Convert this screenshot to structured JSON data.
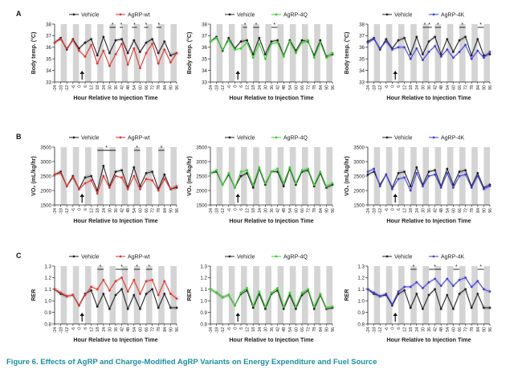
{
  "caption": "Figure 6. Effects of AgRP and Charge-Modified AgRP Variants on Energy Expenditure and Fuel Source",
  "x_axis": {
    "title": "Hour Relative to Injection Time",
    "ticks": [
      -24,
      -18,
      -12,
      -6,
      0,
      6,
      12,
      18,
      24,
      30,
      36,
      42,
      48,
      54,
      60,
      66,
      72,
      78,
      84,
      90,
      96
    ],
    "tick_labels": [
      "-24",
      "-18",
      "-12",
      "-6",
      "0",
      "6",
      "12",
      "18",
      "24",
      "30",
      "36",
      "42",
      "48",
      "54",
      "60",
      "66",
      "72",
      "78",
      "84",
      "90",
      "96"
    ],
    "range": [
      -24,
      96
    ],
    "dark_phases": [
      [
        -18,
        -12
      ],
      [
        -6,
        0
      ],
      [
        6,
        12
      ],
      [
        18,
        24
      ],
      [
        30,
        36
      ],
      [
        42,
        48
      ],
      [
        54,
        60
      ],
      [
        66,
        72
      ],
      [
        78,
        84
      ],
      [
        90,
        96
      ]
    ],
    "injection_hour": 0
  },
  "colors": {
    "vehicle": "#222222",
    "wt": "#e8322e",
    "q4": "#39d12e",
    "k4": "#3f3fdc",
    "shade": "#d4d4d4"
  },
  "rows": [
    {
      "letter": "A",
      "ylabel": "Body temp. (°C)",
      "yticks": [
        33,
        34,
        35,
        36,
        37,
        38
      ],
      "ylim": [
        33,
        38
      ]
    },
    {
      "letter": "B",
      "ylabel": "VO₂ (mL/kg/hr)",
      "yticks": [
        1500,
        2000,
        2500,
        3000,
        3500
      ],
      "ylim": [
        1500,
        3500
      ]
    },
    {
      "letter": "C",
      "ylabel": "RER",
      "yticks": [
        0.8,
        0.9,
        1.0,
        1.1,
        1.2,
        1.3
      ],
      "ylim": [
        0.8,
        1.3
      ]
    }
  ],
  "columns": [
    {
      "variant": "wt",
      "legend_vehicle": "Vehicle",
      "legend_variant": "AgRP-wt"
    },
    {
      "variant": "q4",
      "legend_vehicle": "Vehicle",
      "legend_variant": "AgRP-4Q"
    },
    {
      "variant": "k4",
      "legend_vehicle": "Vehicle",
      "legend_variant": "AgRP-4K"
    }
  ],
  "chart_data": [
    {
      "type": "line",
      "panel": "A-wt",
      "ylabel": "Body temp. (°C)",
      "ylim": [
        33,
        38
      ],
      "xlabel": "Hour Relative to Injection Time",
      "x": [
        -24,
        -18,
        -12,
        -6,
        0,
        6,
        12,
        18,
        24,
        30,
        36,
        42,
        48,
        54,
        60,
        66,
        72,
        78,
        84,
        90,
        96
      ],
      "series": [
        {
          "name": "Vehicle",
          "values": [
            36.4,
            36.8,
            35.8,
            36.7,
            35.9,
            36.4,
            36.7,
            35.3,
            36.9,
            35.5,
            36.6,
            36.7,
            35.5,
            36.6,
            35.6,
            36.4,
            36.7,
            35.5,
            36.5,
            35.3,
            35.5
          ]
        },
        {
          "name": "AgRP-wt",
          "values": [
            36.4,
            36.7,
            35.9,
            36.6,
            35.7,
            35.2,
            36.2,
            34.6,
            35.7,
            34.4,
            35.4,
            36.3,
            34.5,
            35.9,
            34.2,
            35.5,
            36.3,
            34.6,
            35.8,
            34.7,
            35.5
          ]
        }
      ],
      "significance": [
        {
          "from": 30,
          "to": 36,
          "label": "*"
        },
        {
          "from": 40,
          "to": 43,
          "label": "*"
        },
        {
          "from": 52,
          "to": 57,
          "label": "*"
        },
        {
          "from": 64,
          "to": 68,
          "label": "*"
        },
        {
          "from": 76,
          "to": 81,
          "label": "*"
        }
      ]
    },
    {
      "type": "line",
      "panel": "A-4Q",
      "ylabel": "Body temp. (°C)",
      "ylim": [
        33,
        38
      ],
      "xlabel": "Hour Relative to Injection Time",
      "x": [
        -24,
        -18,
        -12,
        -6,
        0,
        6,
        12,
        18,
        24,
        30,
        36,
        42,
        48,
        54,
        60,
        66,
        72,
        78,
        84,
        90,
        96
      ],
      "series": [
        {
          "name": "Vehicle",
          "values": [
            36.5,
            36.9,
            35.7,
            36.8,
            35.9,
            36.5,
            36.6,
            35.4,
            36.8,
            35.4,
            36.5,
            36.6,
            35.3,
            36.6,
            35.7,
            36.6,
            36.5,
            35.3,
            36.6,
            35.2,
            35.4
          ]
        },
        {
          "name": "AgRP-4Q",
          "values": [
            36.5,
            36.8,
            35.8,
            36.6,
            35.8,
            35.9,
            36.4,
            35.1,
            36.3,
            35.0,
            36.3,
            36.4,
            35.2,
            36.5,
            35.5,
            36.4,
            36.6,
            35.1,
            36.4,
            35.1,
            35.5
          ]
        }
      ],
      "significance": [
        {
          "from": 8,
          "to": 12,
          "label": "*"
        },
        {
          "from": 18,
          "to": 24,
          "label": "*"
        },
        {
          "from": 36,
          "to": 42,
          "label": "*"
        }
      ]
    },
    {
      "type": "line",
      "panel": "A-4K",
      "ylabel": "Body temp. (°C)",
      "ylim": [
        33,
        38
      ],
      "xlabel": "Hour Relative to Injection Time",
      "x": [
        -24,
        -18,
        -12,
        -6,
        0,
        6,
        12,
        18,
        24,
        30,
        36,
        42,
        48,
        54,
        60,
        66,
        72,
        78,
        84,
        90,
        96
      ],
      "series": [
        {
          "name": "Vehicle",
          "values": [
            36.5,
            36.8,
            35.8,
            36.7,
            35.9,
            36.6,
            36.8,
            35.4,
            36.9,
            35.4,
            36.5,
            36.9,
            35.4,
            36.7,
            35.6,
            36.6,
            36.9,
            35.3,
            36.7,
            35.3,
            35.4
          ]
        },
        {
          "name": "AgRP-4K",
          "values": [
            36.4,
            36.7,
            35.9,
            36.5,
            35.8,
            36.0,
            36.0,
            35.0,
            35.9,
            34.9,
            35.6,
            36.1,
            35.2,
            35.8,
            35.1,
            35.6,
            36.2,
            35.0,
            35.7,
            35.1,
            35.6
          ]
        }
      ],
      "significance": [
        {
          "from": 30,
          "to": 34,
          "label": "*"
        },
        {
          "from": 34,
          "to": 39,
          "label": "*"
        },
        {
          "from": 42,
          "to": 48,
          "label": "*"
        },
        {
          "from": 66,
          "to": 72,
          "label": "*"
        },
        {
          "from": 84,
          "to": 90,
          "label": "*"
        }
      ]
    },
    {
      "type": "line",
      "panel": "B-wt",
      "ylabel": "VO₂ (mL/kg/hr)",
      "ylim": [
        1500,
        3500
      ],
      "xlabel": "Hour Relative to Injection Time",
      "x": [
        -24,
        -18,
        -12,
        -6,
        0,
        6,
        12,
        18,
        24,
        30,
        36,
        42,
        48,
        54,
        60,
        66,
        72,
        78,
        84,
        90,
        96
      ],
      "series": [
        {
          "name": "Vehicle",
          "values": [
            2550,
            2650,
            2150,
            2500,
            2050,
            2450,
            2500,
            2000,
            2850,
            2150,
            2650,
            2700,
            2100,
            2800,
            2150,
            2600,
            2650,
            2050,
            2550,
            2050,
            2100
          ]
        },
        {
          "name": "AgRP-wt",
          "values": [
            2550,
            2600,
            2150,
            2450,
            2050,
            2250,
            2350,
            1900,
            2500,
            2100,
            2500,
            2450,
            2050,
            2500,
            2050,
            2400,
            2350,
            2000,
            2400,
            2050,
            2150
          ]
        }
      ],
      "significance": [
        {
          "from": 18,
          "to": 36,
          "label": "*"
        },
        {
          "from": 54,
          "to": 60,
          "label": "*"
        },
        {
          "from": 78,
          "to": 84,
          "label": "*"
        }
      ]
    },
    {
      "type": "line",
      "panel": "B-4Q",
      "ylabel": "VO₂ (mL/kg/hr)",
      "ylim": [
        1500,
        3500
      ],
      "xlabel": "Hour Relative to Injection Time",
      "x": [
        -24,
        -18,
        -12,
        -6,
        0,
        6,
        12,
        18,
        24,
        30,
        36,
        42,
        48,
        54,
        60,
        66,
        72,
        78,
        84,
        90,
        96
      ],
      "series": [
        {
          "name": "Vehicle",
          "values": [
            2600,
            2650,
            2200,
            2550,
            2100,
            2500,
            2600,
            2100,
            2750,
            2200,
            2650,
            2650,
            2150,
            2750,
            2200,
            2650,
            2700,
            2150,
            2600,
            2100,
            2200
          ]
        },
        {
          "name": "AgRP-4Q",
          "values": [
            2600,
            2700,
            2200,
            2600,
            2100,
            2650,
            2700,
            2200,
            2800,
            2250,
            2650,
            2750,
            2250,
            2800,
            2250,
            2700,
            2750,
            2200,
            2650,
            2150,
            2250
          ]
        }
      ],
      "significance": []
    },
    {
      "type": "line",
      "panel": "B-4K",
      "ylabel": "VO₂ (mL/kg/hr)",
      "ylim": [
        1500,
        3500
      ],
      "xlabel": "Hour Relative to Injection Time",
      "x": [
        -24,
        -18,
        -12,
        -6,
        0,
        6,
        12,
        18,
        24,
        30,
        36,
        42,
        48,
        54,
        60,
        66,
        72,
        78,
        84,
        90,
        96
      ],
      "series": [
        {
          "name": "Vehicle",
          "values": [
            2550,
            2650,
            2200,
            2550,
            2100,
            2600,
            2650,
            2150,
            2800,
            2200,
            2650,
            2700,
            2150,
            2750,
            2200,
            2650,
            2700,
            2150,
            2600,
            2100,
            2200
          ]
        },
        {
          "name": "AgRP-4K",
          "values": [
            2650,
            2750,
            2150,
            2550,
            2050,
            2400,
            2450,
            2000,
            2600,
            2150,
            2500,
            2550,
            2100,
            2600,
            2100,
            2500,
            2550,
            2100,
            2500,
            2050,
            2150
          ]
        }
      ],
      "significance": []
    },
    {
      "type": "line",
      "panel": "C-wt",
      "ylabel": "RER",
      "ylim": [
        0.8,
        1.3
      ],
      "xlabel": "Hour Relative to Injection Time",
      "x": [
        -24,
        -18,
        -12,
        -6,
        0,
        6,
        12,
        18,
        24,
        30,
        36,
        42,
        48,
        54,
        60,
        66,
        72,
        78,
        84,
        90,
        96
      ],
      "series": [
        {
          "name": "Vehicle",
          "values": [
            1.1,
            1.06,
            1.04,
            1.05,
            0.96,
            1.06,
            1.09,
            0.95,
            1.06,
            0.93,
            1.05,
            1.1,
            0.93,
            1.05,
            0.93,
            1.06,
            1.1,
            0.94,
            1.06,
            0.94,
            0.94
          ]
        },
        {
          "name": "AgRP-wt",
          "values": [
            1.1,
            1.07,
            1.04,
            1.05,
            0.96,
            1.05,
            1.12,
            1.1,
            1.18,
            1.09,
            1.17,
            1.2,
            1.08,
            1.18,
            1.06,
            1.17,
            1.18,
            1.05,
            1.17,
            1.06,
            1.02
          ]
        }
      ],
      "significance": [
        {
          "from": 18,
          "to": 24,
          "label": "*"
        },
        {
          "from": 36,
          "to": 48,
          "label": "*"
        },
        {
          "from": 54,
          "to": 60,
          "label": "*"
        },
        {
          "from": 66,
          "to": 72,
          "label": "*"
        }
      ]
    },
    {
      "type": "line",
      "panel": "C-4Q",
      "ylabel": "RER",
      "ylim": [
        0.8,
        1.3
      ],
      "xlabel": "Hour Relative to Injection Time",
      "x": [
        -24,
        -18,
        -12,
        -6,
        0,
        6,
        12,
        18,
        24,
        30,
        36,
        42,
        48,
        54,
        60,
        66,
        72,
        78,
        84,
        90,
        96
      ],
      "series": [
        {
          "name": "Vehicle",
          "values": [
            1.1,
            1.07,
            1.03,
            1.05,
            0.96,
            1.06,
            1.09,
            0.94,
            1.06,
            0.93,
            1.06,
            1.09,
            0.93,
            1.05,
            0.93,
            1.05,
            1.09,
            0.93,
            1.05,
            0.93,
            0.94
          ]
        },
        {
          "name": "AgRP-4Q",
          "values": [
            1.1,
            1.07,
            1.03,
            1.05,
            0.96,
            1.07,
            1.11,
            0.96,
            1.08,
            0.95,
            1.07,
            1.11,
            0.95,
            1.07,
            0.95,
            1.07,
            1.1,
            0.95,
            1.06,
            0.94,
            0.95
          ]
        }
      ],
      "significance": []
    },
    {
      "type": "line",
      "panel": "C-4K",
      "ylabel": "RER",
      "ylim": [
        0.8,
        1.3
      ],
      "xlabel": "Hour Relative to Injection Time",
      "x": [
        -24,
        -18,
        -12,
        -6,
        0,
        6,
        12,
        18,
        24,
        30,
        36,
        42,
        48,
        54,
        60,
        66,
        72,
        78,
        84,
        90,
        96
      ],
      "series": [
        {
          "name": "Vehicle",
          "values": [
            1.1,
            1.06,
            1.04,
            1.05,
            0.96,
            1.06,
            1.09,
            0.94,
            1.06,
            0.93,
            1.05,
            1.1,
            0.93,
            1.05,
            0.93,
            1.06,
            1.1,
            0.94,
            1.06,
            0.94,
            0.94
          ]
        },
        {
          "name": "AgRP-4K",
          "values": [
            1.1,
            1.07,
            1.04,
            1.06,
            0.97,
            1.08,
            1.12,
            1.12,
            1.16,
            1.11,
            1.16,
            1.19,
            1.13,
            1.19,
            1.13,
            1.18,
            1.2,
            1.12,
            1.17,
            1.1,
            1.08
          ]
        }
      ],
      "significance": [
        {
          "from": 18,
          "to": 24,
          "label": "*"
        },
        {
          "from": 36,
          "to": 48,
          "label": "*"
        },
        {
          "from": 60,
          "to": 66,
          "label": "*"
        },
        {
          "from": 84,
          "to": 90,
          "label": "*"
        }
      ]
    }
  ]
}
